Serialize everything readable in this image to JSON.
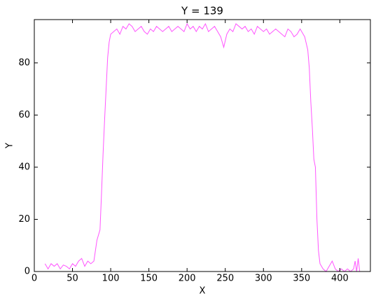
{
  "chart_data": {
    "type": "line",
    "title": "Y = 139",
    "x_label": "X",
    "y_label": "Y",
    "x": [
      14,
      18,
      22,
      26,
      30,
      34,
      38,
      42,
      46,
      50,
      54,
      58,
      62,
      66,
      70,
      74,
      78,
      82,
      86,
      88,
      90,
      92,
      94,
      96,
      98,
      100,
      104,
      108,
      112,
      116,
      120,
      124,
      128,
      132,
      136,
      140,
      144,
      148,
      152,
      156,
      160,
      164,
      168,
      172,
      176,
      180,
      184,
      188,
      192,
      196,
      200,
      204,
      208,
      212,
      216,
      220,
      224,
      228,
      232,
      236,
      240,
      244,
      248,
      252,
      256,
      260,
      264,
      268,
      272,
      276,
      280,
      284,
      288,
      292,
      296,
      300,
      304,
      308,
      312,
      316,
      320,
      324,
      328,
      332,
      336,
      340,
      344,
      348,
      352,
      354,
      358,
      360,
      362,
      364,
      366,
      368,
      370,
      372,
      374,
      378,
      382,
      386,
      390,
      394,
      398,
      402,
      406,
      410,
      414,
      418,
      420,
      422,
      424,
      426
    ],
    "series": [
      {
        "name": "Y",
        "color": "#ff55ff",
        "values": [
          3,
          1,
          3,
          2,
          3,
          1,
          2.5,
          2,
          1,
          3,
          2,
          4,
          5,
          2,
          4,
          3,
          4,
          12,
          16,
          30,
          45,
          58,
          70,
          82,
          88,
          91,
          92,
          93,
          91,
          94,
          93,
          95,
          94,
          92,
          93,
          94,
          92,
          91,
          93,
          92,
          94,
          93,
          92,
          93,
          94,
          92,
          93,
          94,
          93,
          92,
          95,
          93,
          94,
          92,
          94,
          93,
          95,
          92,
          93,
          94,
          92,
          90,
          86,
          91,
          93,
          92,
          95,
          94,
          93,
          94,
          92,
          93,
          91,
          94,
          93,
          92,
          93,
          91,
          92,
          93,
          92,
          91,
          90,
          93,
          92,
          90,
          91,
          93,
          91,
          90,
          85,
          78,
          65,
          55,
          43,
          40,
          20,
          8,
          3,
          1,
          0,
          2,
          4,
          1,
          0,
          1,
          0,
          1,
          0,
          1,
          4,
          0,
          5,
          0
        ]
      }
    ],
    "xlim": [
      0,
      440
    ],
    "ylim": [
      0,
      96.6
    ],
    "xticks": [
      0,
      50,
      100,
      150,
      200,
      250,
      300,
      350,
      400
    ],
    "yticks": [
      0,
      20,
      40,
      60,
      80
    ]
  }
}
